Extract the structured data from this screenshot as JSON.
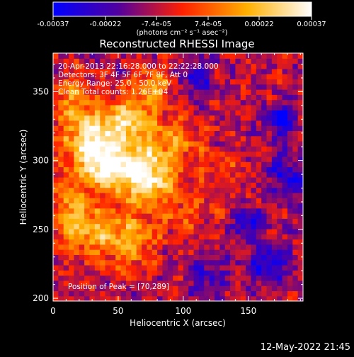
{
  "chart_data": {
    "type": "heatmap",
    "title": "Reconstructed RHESSI Image",
    "xlabel": "Heliocentric X (arcsec)",
    "ylabel": "Heliocentric Y (arcsec)",
    "xlim": [
      0,
      192
    ],
    "ylim": [
      198,
      378
    ],
    "x_ticks": [
      0,
      50,
      100,
      150
    ],
    "y_ticks": [
      200,
      250,
      300,
      350
    ],
    "colorbar": {
      "range": [
        -0.00037,
        0.00037
      ],
      "tick_labels": [
        "-0.00037",
        "-0.00022",
        "-7.4e-05",
        "7.4e-05",
        "0.00022",
        "0.00037"
      ],
      "unit_label": "(photons cm⁻² s⁻¹ asec⁻²)",
      "colors": [
        "#0000ff",
        "#5000a0",
        "#ff2000",
        "#ffb000",
        "#ffffff"
      ]
    },
    "annotations": [
      "20-Apr-2013 22:16:28.000 to 22:22:28.000",
      "Detectors: 3F 4F 5F 6F 7F 8F, Att 0",
      "Energy Range: 25.0 - 50.0 keV",
      "Clean     Total counts: 1.26E+04"
    ],
    "peak_label": "Position of Peak = [70,289]",
    "peak": [
      70,
      289
    ],
    "blobs": [
      {
        "x": 70,
        "y": 290,
        "sx": 16,
        "sy": 14,
        "a": 1.1
      },
      {
        "x": 30,
        "y": 315,
        "sx": 16,
        "sy": 14,
        "a": 0.95
      },
      {
        "x": 40,
        "y": 295,
        "sx": 12,
        "sy": 10,
        "a": 0.85
      },
      {
        "x": 60,
        "y": 330,
        "sx": 14,
        "sy": 12,
        "a": 0.75
      },
      {
        "x": 78,
        "y": 355,
        "sx": 10,
        "sy": 8,
        "a": 0.65
      },
      {
        "x": 15,
        "y": 345,
        "sx": 12,
        "sy": 12,
        "a": 0.5
      },
      {
        "x": 95,
        "y": 315,
        "sx": 14,
        "sy": 12,
        "a": 0.45
      },
      {
        "x": 30,
        "y": 250,
        "sx": 18,
        "sy": 14,
        "a": 0.6
      },
      {
        "x": 60,
        "y": 240,
        "sx": 14,
        "sy": 14,
        "a": 0.5
      },
      {
        "x": 12,
        "y": 270,
        "sx": 10,
        "sy": 16,
        "a": 0.45
      },
      {
        "x": 100,
        "y": 262,
        "sx": 20,
        "sy": 10,
        "a": 0.3
      },
      {
        "x": 130,
        "y": 295,
        "sx": 14,
        "sy": 10,
        "a": 0.25
      },
      {
        "x": 150,
        "y": 255,
        "sx": 8,
        "sy": 8,
        "a": -0.6
      },
      {
        "x": 175,
        "y": 330,
        "sx": 8,
        "sy": 8,
        "a": -0.7
      },
      {
        "x": 165,
        "y": 225,
        "sx": 12,
        "sy": 10,
        "a": -0.55
      },
      {
        "x": 110,
        "y": 360,
        "sx": 10,
        "sy": 8,
        "a": -0.45
      },
      {
        "x": 120,
        "y": 215,
        "sx": 10,
        "sy": 10,
        "a": -0.4
      },
      {
        "x": 180,
        "y": 290,
        "sx": 10,
        "sy": 12,
        "a": -0.5
      }
    ]
  },
  "footer": {
    "timestamp": "12-May-2022 21:45"
  }
}
